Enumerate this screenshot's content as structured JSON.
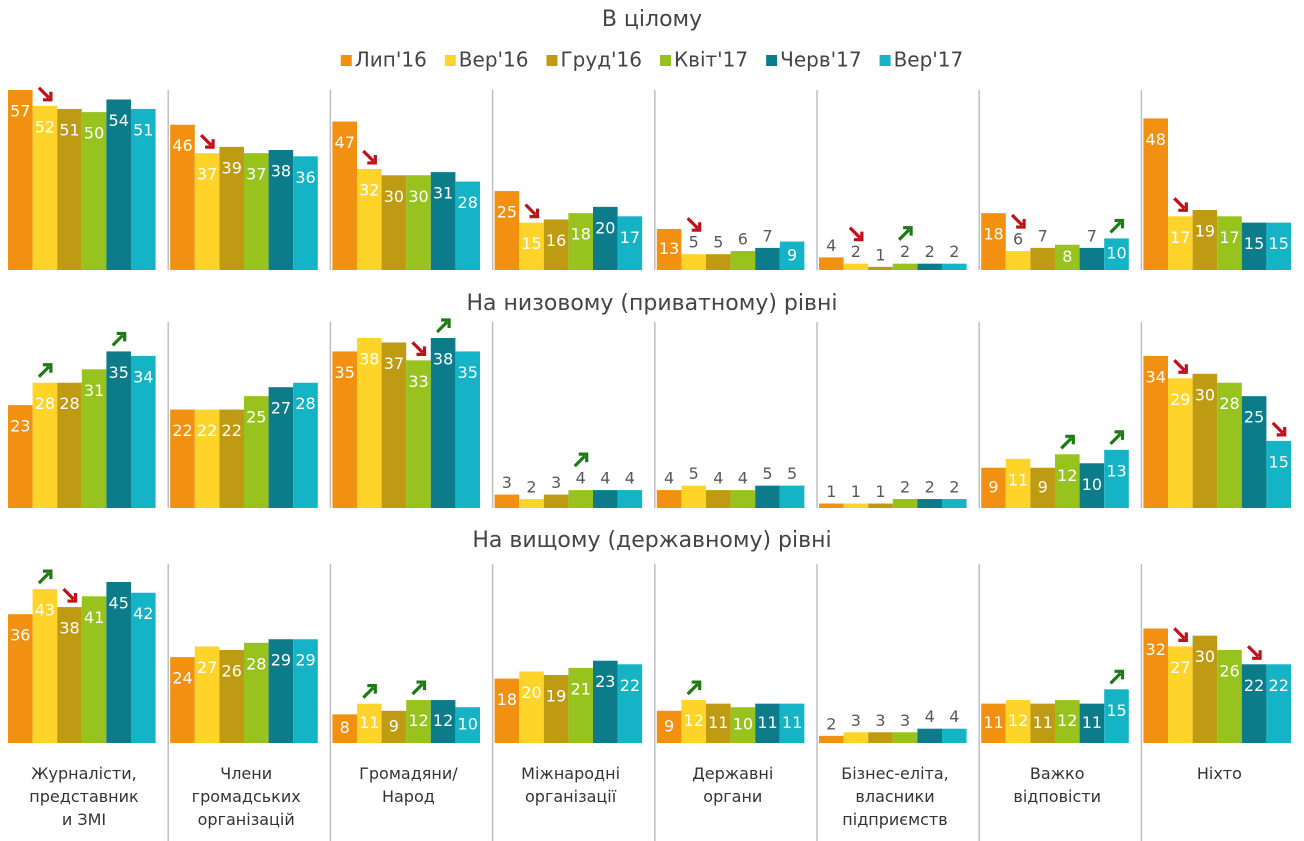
{
  "chart_data": {
    "type": "bar",
    "legend": "top",
    "categories": [
      "Журналісти,\nпредставник\nи ЗМІ",
      "Члени\nгромадських\nорганізацій",
      "Громадяни/\nНарод",
      "Міжнародні\nорганізації",
      "Державні\nоргани",
      "Бізнес-еліта,\nвласники\nпідприємств",
      "Важко\nвідповісти",
      "Ніхто"
    ],
    "series": [
      {
        "name": "Лип'16",
        "color": "#f29111"
      },
      {
        "name": "Вер'16",
        "color": "#ffd42a"
      },
      {
        "name": "Груд'16",
        "color": "#bf9b14"
      },
      {
        "name": "Квіт'17",
        "color": "#98c21d"
      },
      {
        "name": "Черв'17",
        "color": "#0c7b8a"
      },
      {
        "name": "Вер'17",
        "color": "#15b3c6"
      }
    ],
    "panels": [
      {
        "title": "В цілому",
        "series": [
          {
            "values": [
              57,
              46,
              47,
              25,
              13,
              4,
              18,
              48
            ]
          },
          {
            "values": [
              52,
              37,
              32,
              15,
              5,
              2,
              6,
              17
            ]
          },
          {
            "values": [
              51,
              39,
              30,
              16,
              5,
              1,
              7,
              19
            ]
          },
          {
            "values": [
              50,
              37,
              30,
              18,
              6,
              2,
              8,
              17
            ]
          },
          {
            "values": [
              54,
              38,
              31,
              20,
              7,
              2,
              7,
              15
            ]
          },
          {
            "values": [
              51,
              36,
              28,
              17,
              9,
              2,
              10,
              15
            ]
          }
        ],
        "changes": [
          {
            "series": 1,
            "category": 0,
            "direction": "down"
          },
          {
            "series": 1,
            "category": 1,
            "direction": "down"
          },
          {
            "series": 1,
            "category": 2,
            "direction": "down"
          },
          {
            "series": 1,
            "category": 3,
            "direction": "down"
          },
          {
            "series": 1,
            "category": 4,
            "direction": "down"
          },
          {
            "series": 1,
            "category": 5,
            "direction": "down"
          },
          {
            "series": 3,
            "category": 5,
            "direction": "up"
          },
          {
            "series": 1,
            "category": 6,
            "direction": "down"
          },
          {
            "series": 5,
            "category": 6,
            "direction": "up"
          },
          {
            "series": 1,
            "category": 7,
            "direction": "down"
          }
        ]
      },
      {
        "title": "На низовому (приватному) рівні",
        "series": [
          {
            "values": [
              23,
              22,
              35,
              3,
              4,
              1,
              9,
              34
            ]
          },
          {
            "values": [
              28,
              22,
              38,
              2,
              5,
              1,
              11,
              29
            ]
          },
          {
            "values": [
              28,
              22,
              37,
              3,
              4,
              1,
              9,
              30
            ]
          },
          {
            "values": [
              31,
              25,
              33,
              4,
              4,
              2,
              12,
              28
            ]
          },
          {
            "values": [
              35,
              27,
              38,
              4,
              5,
              2,
              10,
              25
            ]
          },
          {
            "values": [
              34,
              28,
              35,
              4,
              5,
              2,
              13,
              15
            ]
          }
        ],
        "changes": [
          {
            "series": 1,
            "category": 0,
            "direction": "up"
          },
          {
            "series": 4,
            "category": 0,
            "direction": "up"
          },
          {
            "series": 3,
            "category": 2,
            "direction": "down"
          },
          {
            "series": 4,
            "category": 2,
            "direction": "up"
          },
          {
            "series": 3,
            "category": 3,
            "direction": "up"
          },
          {
            "series": 3,
            "category": 6,
            "direction": "up"
          },
          {
            "series": 5,
            "category": 6,
            "direction": "up"
          },
          {
            "series": 1,
            "category": 7,
            "direction": "down"
          },
          {
            "series": 5,
            "category": 7,
            "direction": "down"
          }
        ]
      },
      {
        "title": "На вищому (державному) рівні",
        "series": [
          {
            "values": [
              36,
              24,
              8,
              18,
              9,
              2,
              11,
              32
            ]
          },
          {
            "values": [
              43,
              27,
              11,
              20,
              12,
              3,
              12,
              27
            ]
          },
          {
            "values": [
              38,
              26,
              9,
              19,
              11,
              3,
              11,
              30
            ]
          },
          {
            "values": [
              41,
              28,
              12,
              21,
              10,
              3,
              12,
              26
            ]
          },
          {
            "values": [
              45,
              29,
              12,
              23,
              11,
              4,
              11,
              22
            ]
          },
          {
            "values": [
              42,
              29,
              10,
              22,
              11,
              4,
              15,
              22
            ]
          }
        ],
        "changes": [
          {
            "series": 1,
            "category": 0,
            "direction": "up"
          },
          {
            "series": 2,
            "category": 0,
            "direction": "down"
          },
          {
            "series": 1,
            "category": 2,
            "direction": "up"
          },
          {
            "series": 3,
            "category": 2,
            "direction": "up"
          },
          {
            "series": 1,
            "category": 4,
            "direction": "up"
          },
          {
            "series": 5,
            "category": 6,
            "direction": "up"
          },
          {
            "series": 1,
            "category": 7,
            "direction": "down"
          },
          {
            "series": 4,
            "category": 7,
            "direction": "down"
          }
        ]
      }
    ]
  }
}
